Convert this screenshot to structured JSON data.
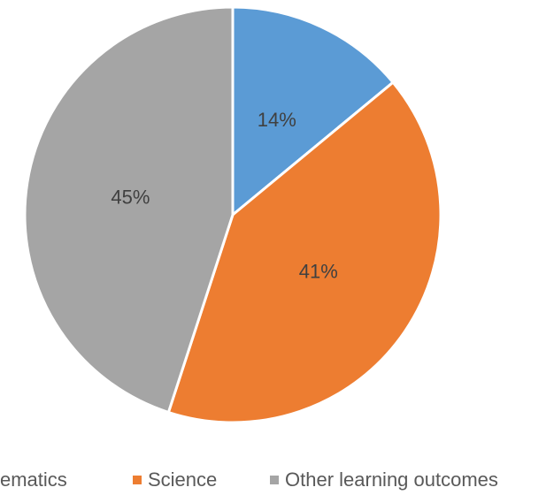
{
  "chart_data": {
    "type": "pie",
    "categories": [
      "ematics",
      "Science",
      "Other learning outcomes"
    ],
    "values": [
      14,
      41,
      45
    ],
    "value_labels": [
      "14%",
      "41%",
      "45%"
    ],
    "colors": [
      "#5b9bd5",
      "#ed7d31",
      "#a5a5a5"
    ]
  }
}
